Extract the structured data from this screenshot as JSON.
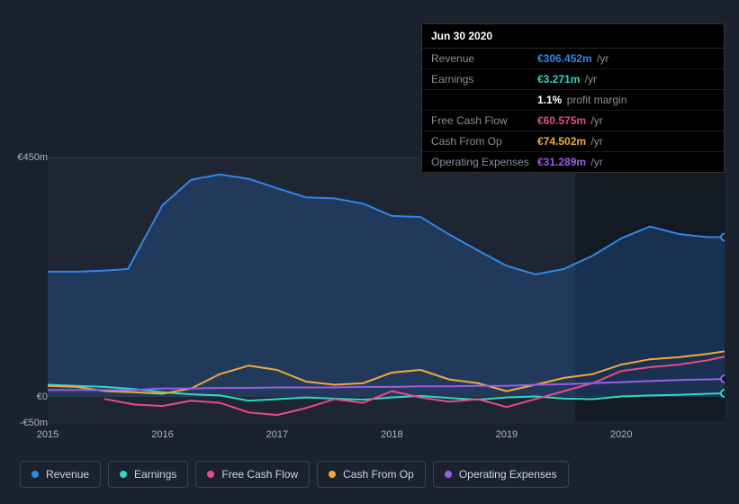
{
  "tooltip": {
    "date": "Jun 30 2020",
    "rows": [
      {
        "label": "Revenue",
        "value": "€306.452m",
        "unit": "/yr",
        "color": "#2f86eb"
      },
      {
        "label": "Earnings",
        "value": "€3.271m",
        "unit": "/yr",
        "color": "#2fd8c4"
      },
      {
        "label": "",
        "value": "1.1%",
        "unit": "profit margin",
        "color": "#ffffff"
      },
      {
        "label": "Free Cash Flow",
        "value": "€60.575m",
        "unit": "/yr",
        "color": "#e84b8a"
      },
      {
        "label": "Cash From Op",
        "value": "€74.502m",
        "unit": "/yr",
        "color": "#f0a840"
      },
      {
        "label": "Operating Expenses",
        "value": "€31.289m",
        "unit": "/yr",
        "color": "#9b5de5"
      }
    ]
  },
  "chart": {
    "background": "#1b222d",
    "plot_bg_left": "#1e2633",
    "plot_bg_right": "#141a24",
    "grid_color": "#2a3140",
    "text_color": "#b0b5bf",
    "y_axis": {
      "min": -50,
      "max": 450,
      "ticks": [
        {
          "v": 450,
          "label": "€450m"
        },
        {
          "v": 0,
          "label": "€0"
        },
        {
          "v": -50,
          "label": "-€50m"
        }
      ]
    },
    "x_axis": {
      "min": 2015,
      "max": 2020.9,
      "ticks": [
        {
          "v": 2015,
          "label": "2015"
        },
        {
          "v": 2016,
          "label": "2016"
        },
        {
          "v": 2017,
          "label": "2017"
        },
        {
          "v": 2018,
          "label": "2018"
        },
        {
          "v": 2019,
          "label": "2019"
        },
        {
          "v": 2020,
          "label": "2020"
        }
      ]
    },
    "series": [
      {
        "name": "Revenue",
        "color": "#2f86eb",
        "area": true,
        "area_opacity": 0.22,
        "line_width": 2,
        "data": [
          [
            2015.0,
            235
          ],
          [
            2015.25,
            235
          ],
          [
            2015.5,
            237
          ],
          [
            2015.7,
            240
          ],
          [
            2016.0,
            360
          ],
          [
            2016.25,
            408
          ],
          [
            2016.5,
            418
          ],
          [
            2016.75,
            410
          ],
          [
            2017.0,
            392
          ],
          [
            2017.25,
            375
          ],
          [
            2017.5,
            373
          ],
          [
            2017.75,
            363
          ],
          [
            2018.0,
            340
          ],
          [
            2018.25,
            338
          ],
          [
            2018.5,
            305
          ],
          [
            2018.75,
            275
          ],
          [
            2019.0,
            246
          ],
          [
            2019.25,
            230
          ],
          [
            2019.5,
            240
          ],
          [
            2019.75,
            265
          ],
          [
            2020.0,
            298
          ],
          [
            2020.25,
            320
          ],
          [
            2020.5,
            306
          ],
          [
            2020.75,
            300
          ],
          [
            2020.9,
            300
          ]
        ]
      },
      {
        "name": "Earnings",
        "color": "#2fd8c4",
        "line_width": 2,
        "data": [
          [
            2015.0,
            22
          ],
          [
            2015.25,
            20
          ],
          [
            2015.5,
            18
          ],
          [
            2015.75,
            14
          ],
          [
            2016.0,
            8
          ],
          [
            2016.25,
            4
          ],
          [
            2016.5,
            2
          ],
          [
            2016.75,
            -8
          ],
          [
            2017.0,
            -5
          ],
          [
            2017.25,
            -2
          ],
          [
            2017.5,
            -4
          ],
          [
            2017.75,
            -6
          ],
          [
            2018.0,
            -2
          ],
          [
            2018.25,
            1
          ],
          [
            2018.5,
            -3
          ],
          [
            2018.75,
            -6
          ],
          [
            2019.0,
            -2
          ],
          [
            2019.25,
            0
          ],
          [
            2019.5,
            -4
          ],
          [
            2019.75,
            -5
          ],
          [
            2020.0,
            0
          ],
          [
            2020.25,
            2
          ],
          [
            2020.5,
            3
          ],
          [
            2020.75,
            5
          ],
          [
            2020.9,
            6
          ]
        ]
      },
      {
        "name": "Free Cash Flow",
        "color": "#e84b8a",
        "line_width": 2,
        "data": [
          [
            2015.5,
            -5
          ],
          [
            2015.75,
            -15
          ],
          [
            2016.0,
            -18
          ],
          [
            2016.25,
            -8
          ],
          [
            2016.5,
            -12
          ],
          [
            2016.75,
            -30
          ],
          [
            2017.0,
            -35
          ],
          [
            2017.25,
            -22
          ],
          [
            2017.5,
            -5
          ],
          [
            2017.75,
            -12
          ],
          [
            2018.0,
            10
          ],
          [
            2018.25,
            -2
          ],
          [
            2018.5,
            -10
          ],
          [
            2018.75,
            -5
          ],
          [
            2019.0,
            -20
          ],
          [
            2019.25,
            -5
          ],
          [
            2019.5,
            10
          ],
          [
            2019.75,
            25
          ],
          [
            2020.0,
            48
          ],
          [
            2020.25,
            55
          ],
          [
            2020.5,
            60
          ],
          [
            2020.75,
            68
          ],
          [
            2020.9,
            75
          ]
        ]
      },
      {
        "name": "Cash From Op",
        "color": "#f0a840",
        "line_width": 2,
        "data": [
          [
            2015.0,
            20
          ],
          [
            2015.25,
            18
          ],
          [
            2015.5,
            10
          ],
          [
            2015.75,
            8
          ],
          [
            2016.0,
            5
          ],
          [
            2016.25,
            15
          ],
          [
            2016.5,
            42
          ],
          [
            2016.75,
            58
          ],
          [
            2017.0,
            50
          ],
          [
            2017.25,
            28
          ],
          [
            2017.5,
            22
          ],
          [
            2017.75,
            25
          ],
          [
            2018.0,
            45
          ],
          [
            2018.25,
            50
          ],
          [
            2018.5,
            32
          ],
          [
            2018.75,
            25
          ],
          [
            2019.0,
            10
          ],
          [
            2019.25,
            22
          ],
          [
            2019.5,
            35
          ],
          [
            2019.75,
            42
          ],
          [
            2020.0,
            60
          ],
          [
            2020.25,
            70
          ],
          [
            2020.5,
            74
          ],
          [
            2020.75,
            80
          ],
          [
            2020.9,
            85
          ]
        ]
      },
      {
        "name": "Operating Expenses",
        "color": "#9b5de5",
        "line_width": 2,
        "data": [
          [
            2015.0,
            12
          ],
          [
            2015.25,
            12
          ],
          [
            2015.5,
            12
          ],
          [
            2015.75,
            12
          ],
          [
            2016.0,
            15
          ],
          [
            2016.25,
            15
          ],
          [
            2016.5,
            16
          ],
          [
            2016.75,
            16
          ],
          [
            2017.0,
            17
          ],
          [
            2017.25,
            17
          ],
          [
            2017.5,
            17
          ],
          [
            2017.75,
            18
          ],
          [
            2018.0,
            18
          ],
          [
            2018.25,
            19
          ],
          [
            2018.5,
            19
          ],
          [
            2018.75,
            20
          ],
          [
            2019.0,
            20
          ],
          [
            2019.25,
            22
          ],
          [
            2019.5,
            23
          ],
          [
            2019.75,
            25
          ],
          [
            2020.0,
            27
          ],
          [
            2020.25,
            29
          ],
          [
            2020.5,
            31
          ],
          [
            2020.75,
            32
          ],
          [
            2020.9,
            33
          ]
        ]
      }
    ],
    "hover_x": 2020.5,
    "hover_line_color": "#4a5568"
  },
  "legend": [
    {
      "label": "Revenue",
      "color": "#2f86eb"
    },
    {
      "label": "Earnings",
      "color": "#2fd8c4"
    },
    {
      "label": "Free Cash Flow",
      "color": "#e84b8a"
    },
    {
      "label": "Cash From Op",
      "color": "#f0a840"
    },
    {
      "label": "Operating Expenses",
      "color": "#9b5de5"
    }
  ]
}
